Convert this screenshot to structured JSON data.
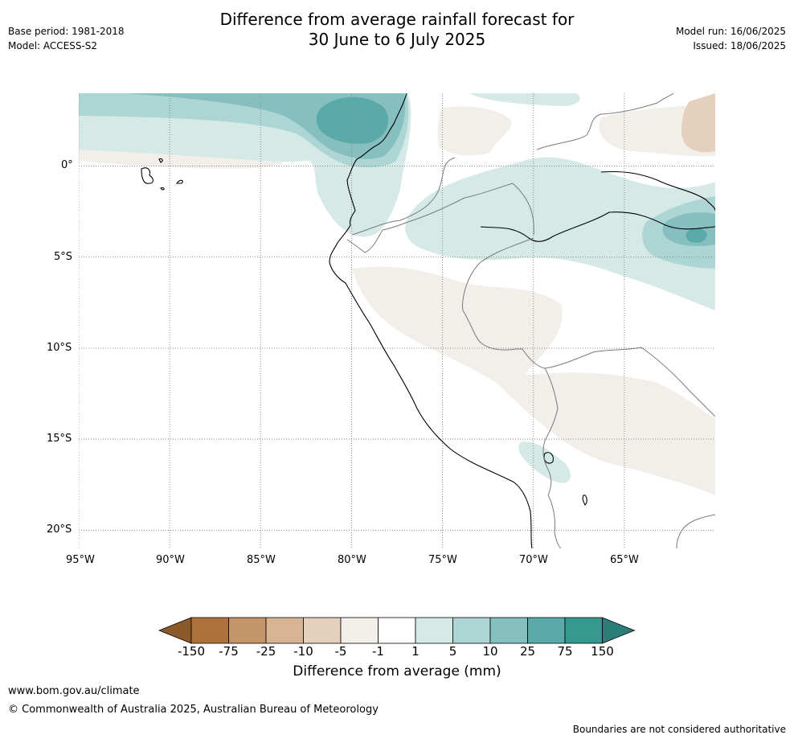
{
  "header": {
    "title_line1": "Difference from average rainfall forecast for",
    "title_line2": "30 June to 6 July 2025",
    "base_period": "Base period: 1981-2018",
    "model": "Model: ACCESS-S2",
    "model_run": "Model run: 16/06/2025",
    "issued": "Issued: 18/06/2025"
  },
  "map": {
    "lat_labels": [
      "0°",
      "5°S",
      "10°S",
      "15°S",
      "20°S"
    ],
    "lon_labels": [
      "95°W",
      "90°W",
      "85°W",
      "80°W",
      "75°W",
      "70°W",
      "65°W"
    ],
    "lat_values": [
      0,
      -5,
      -10,
      -15,
      -20
    ],
    "lon_values": [
      -95,
      -90,
      -85,
      -80,
      -75,
      -70,
      -65
    ],
    "extent": {
      "lon_min": -95,
      "lon_max": -60,
      "lat_min": -21,
      "lat_max": 4
    },
    "gridlines": true,
    "colors": {
      "ocean_land": "#ffffff",
      "coastline": "#000000",
      "border": "#7a7a7a",
      "grid": "#8a8a8a"
    }
  },
  "legend": {
    "title": "Difference from average (mm)",
    "ticks": [
      "-150",
      "-75",
      "-25",
      "-10",
      "-5",
      "-1",
      "1",
      "5",
      "10",
      "25",
      "75",
      "150"
    ],
    "colors": [
      "#8c5a2a",
      "#ad733c",
      "#c39568",
      "#d7b493",
      "#e4d0bd",
      "#f2eee9",
      "#ffffff",
      "#d5e9e7",
      "#acd5d4",
      "#85bfbf",
      "#5aaaa9",
      "#36998f",
      "#2b7d79"
    ]
  },
  "footer": {
    "website": "www.bom.gov.au/climate",
    "copyright": "© Commonwealth of Australia 2025, Australian Bureau of Meteorology",
    "disclaimer": "Boundaries are not considered authoritative"
  }
}
